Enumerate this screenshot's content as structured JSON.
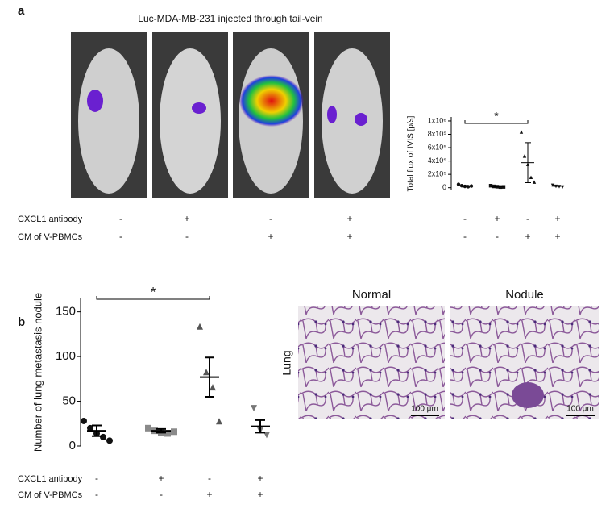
{
  "panel_a": {
    "label": "a",
    "title": "Luc-MDA-MB-231 injected through tail-vein",
    "conditions": [
      {
        "name": "CXCL1 antibody",
        "signs": [
          "-",
          "+",
          "-",
          "+"
        ]
      },
      {
        "name": "CM of V-PBMCs",
        "signs": [
          "-",
          "-",
          "+",
          "+"
        ]
      }
    ],
    "chart": {
      "type": "scatter",
      "y_label": "Total flux of IVIS [p/s]",
      "ylim": [
        -40000,
        1060000
      ],
      "yticks": [
        0,
        {
          "value": 200000,
          "label": "2x10⁵"
        },
        {
          "value": 400000,
          "label": "4x10⁵"
        },
        {
          "value": 600000,
          "label": "6x10⁵"
        },
        {
          "value": 800000,
          "label": "8x10⁵"
        },
        {
          "value": 1000000,
          "label": "1x10⁶"
        }
      ],
      "groups": [
        {
          "marker": "circle",
          "color": "#111111",
          "values": [
            50000,
            30000,
            20000,
            15000,
            25000
          ],
          "mean": 28000,
          "error": 6000
        },
        {
          "marker": "square",
          "color": "#111111",
          "values": [
            30000,
            20000,
            15000,
            10000,
            12000
          ],
          "mean": 17000,
          "error": 4000
        },
        {
          "marker": "triangle",
          "color": "#111111",
          "values": [
            830000,
            470000,
            345000,
            150000,
            80000
          ],
          "mean": 375000,
          "error": 300000
        },
        {
          "marker": "triangle-down",
          "color": "#111111",
          "values": [
            40000,
            25000,
            20000,
            15000
          ],
          "mean": 25000,
          "error": 5000
        }
      ],
      "significance": {
        "label": "*",
        "groups": [
          0,
          2
        ]
      }
    }
  },
  "panel_b": {
    "label": "b",
    "conditions": [
      {
        "name": "CXCL1 antibody",
        "signs": [
          "-",
          "+",
          "-",
          "+"
        ]
      },
      {
        "name": "CM of V-PBMCs",
        "signs": [
          "-",
          "-",
          "+",
          "+"
        ]
      }
    ],
    "chart": {
      "type": "scatter",
      "y_label": "Number of lung metastasis nodule",
      "ylim": [
        0,
        165
      ],
      "yticks": [
        0,
        50,
        100,
        150
      ],
      "groups": [
        {
          "marker": "circle",
          "color": "#111111",
          "values": [
            28,
            20,
            14,
            10,
            6
          ],
          "mean": 17,
          "error": 6
        },
        {
          "marker": "square",
          "color": "#8a8a8a",
          "values": [
            20,
            17,
            15,
            14,
            16
          ],
          "mean": 17,
          "error": 2
        },
        {
          "marker": "triangle",
          "color": "#555555",
          "values": [
            133,
            82,
            65,
            27
          ],
          "mean": 77,
          "error": 22
        },
        {
          "marker": "triangle-down",
          "color": "#777777",
          "values": [
            43,
            18,
            13
          ],
          "mean": 22,
          "error": 7
        }
      ],
      "significance": {
        "label": "*",
        "groups": [
          0,
          2
        ]
      }
    },
    "histology": {
      "row_label": "Lung",
      "images": [
        {
          "title": "Normal",
          "scale": "100 μm"
        },
        {
          "title": "Nodule",
          "scale": "100 μm"
        }
      ]
    }
  }
}
